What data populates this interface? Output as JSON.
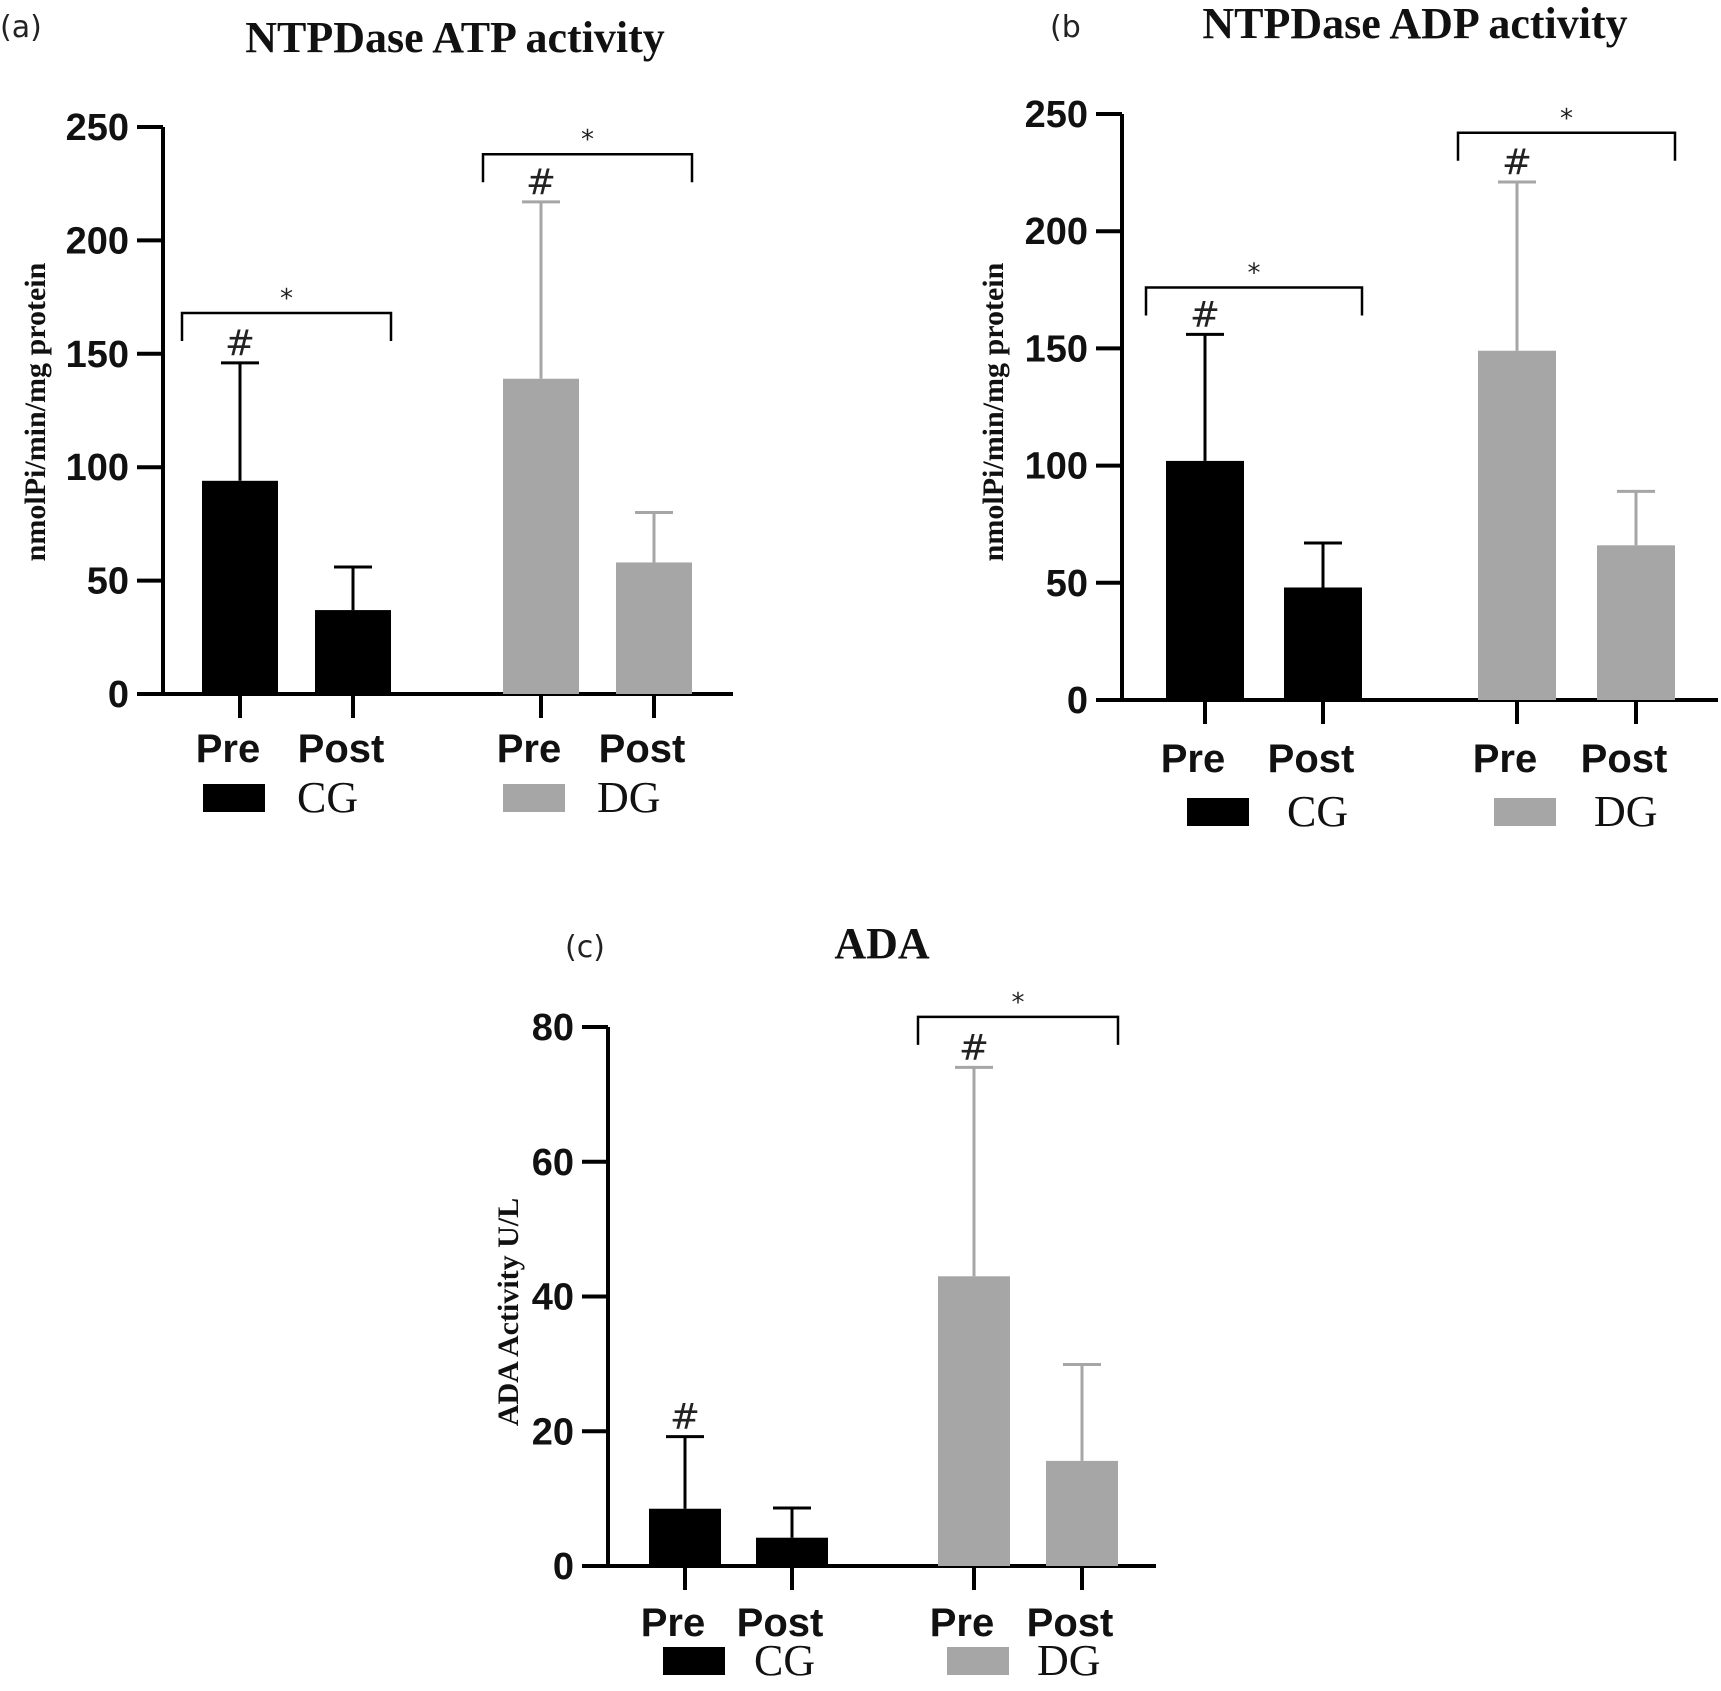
{
  "chart_data": [
    {
      "panel": "(a)",
      "type": "bar",
      "title": "NTPDase ATP activity",
      "ylabel": "nmolPi/min/mg protein",
      "ylim": [
        0,
        250
      ],
      "yticks": [
        0,
        50,
        100,
        150,
        200,
        250
      ],
      "categories": [
        "Pre",
        "Post",
        "Pre",
        "Post"
      ],
      "groups": [
        "CG",
        "CG",
        "DG",
        "DG"
      ],
      "values": [
        94,
        37,
        139,
        58
      ],
      "errors": [
        52,
        19,
        78,
        22
      ],
      "markers": [
        "#",
        "",
        "#",
        ""
      ],
      "significance": [
        {
          "from": 0,
          "to": 1,
          "label": "*",
          "level": 168
        },
        {
          "from": 2,
          "to": 3,
          "label": "*",
          "level": 238
        }
      ],
      "legend": [
        {
          "name": "CG",
          "color": "#000000"
        },
        {
          "name": "DG",
          "color": "#a6a6a6"
        }
      ]
    },
    {
      "panel": "(b",
      "type": "bar",
      "title": "NTPDase ADP activity",
      "ylabel": "nmolPi/min/mg protein",
      "ylim": [
        0,
        250
      ],
      "yticks": [
        0,
        50,
        100,
        150,
        200,
        250
      ],
      "categories": [
        "Pre",
        "Post",
        "Pre",
        "Post"
      ],
      "groups": [
        "CG",
        "CG",
        "DG",
        "DG"
      ],
      "values": [
        102,
        48,
        149,
        66
      ],
      "errors": [
        54,
        19,
        72,
        23
      ],
      "markers": [
        "#",
        "",
        "#",
        ""
      ],
      "significance": [
        {
          "from": 0,
          "to": 1,
          "label": "*",
          "level": 176
        },
        {
          "from": 2,
          "to": 3,
          "label": "*",
          "level": 242
        }
      ],
      "legend": [
        {
          "name": "CG",
          "color": "#000000"
        },
        {
          "name": "DG",
          "color": "#a6a6a6"
        }
      ]
    },
    {
      "panel": "(c)",
      "type": "bar",
      "title": "ADA",
      "ylabel": "ADA Activity U/L",
      "ylim": [
        0,
        80
      ],
      "yticks": [
        0,
        20,
        40,
        60,
        80
      ],
      "categories": [
        "Pre",
        "Post",
        "Pre",
        "Post"
      ],
      "groups": [
        "CG",
        "CG",
        "DG",
        "DG"
      ],
      "values": [
        8.5,
        4.2,
        43,
        15.6
      ],
      "errors": [
        10.7,
        4.4,
        31,
        14.3
      ],
      "markers": [
        "#",
        "",
        "#",
        ""
      ],
      "significance": [
        {
          "from": 2,
          "to": 3,
          "label": "*",
          "level": 81.5
        }
      ],
      "legend": [
        {
          "name": "CG",
          "color": "#000000"
        },
        {
          "name": "DG",
          "color": "#a6a6a6"
        }
      ]
    }
  ]
}
